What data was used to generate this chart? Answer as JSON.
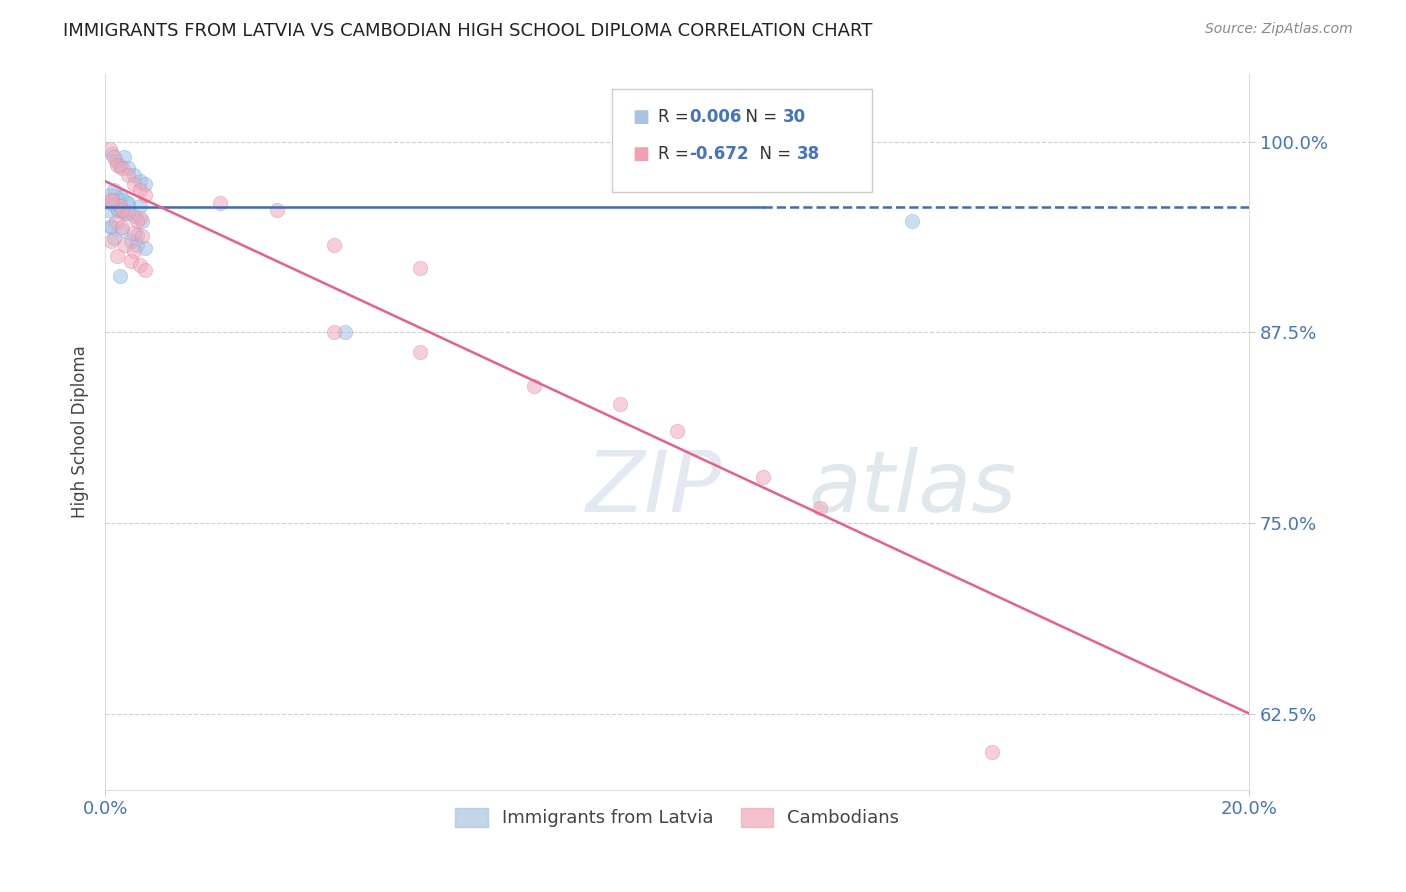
{
  "title": "IMMIGRANTS FROM LATVIA VS CAMBODIAN HIGH SCHOOL DIPLOMA CORRELATION CHART",
  "source": "Source: ZipAtlas.com",
  "ylabel": "High School Diploma",
  "ytick_labels": [
    "62.5%",
    "75.0%",
    "87.5%",
    "100.0%"
  ],
  "ytick_values": [
    0.625,
    0.75,
    0.875,
    1.0
  ],
  "xlim": [
    0.0,
    0.2
  ],
  "ylim": [
    0.575,
    1.045
  ],
  "blue_scatter_x": [
    0.0012,
    0.0018,
    0.0025,
    0.0032,
    0.004,
    0.005,
    0.006,
    0.007,
    0.0015,
    0.0028,
    0.004,
    0.006,
    0.0022,
    0.0035,
    0.005,
    0.0065,
    0.001,
    0.003,
    0.0055,
    0.0015,
    0.0045,
    0.0055,
    0.007,
    0.001,
    0.003,
    0.0025,
    0.042,
    0.001,
    0.001,
    0.141
  ],
  "blue_scatter_y": [
    0.992,
    0.987,
    0.984,
    0.99,
    0.983,
    0.978,
    0.974,
    0.972,
    0.968,
    0.964,
    0.96,
    0.958,
    0.955,
    0.953,
    0.951,
    0.948,
    0.944,
    0.942,
    0.939,
    0.937,
    0.935,
    0.932,
    0.93,
    0.96,
    0.958,
    0.912,
    0.875,
    0.96,
    0.945,
    0.948
  ],
  "blue_scatter_sizes": [
    70,
    70,
    70,
    70,
    70,
    70,
    70,
    70,
    70,
    70,
    70,
    70,
    70,
    70,
    70,
    70,
    70,
    70,
    70,
    70,
    70,
    70,
    70,
    300,
    220,
    70,
    70,
    70,
    70,
    70
  ],
  "pink_scatter_x": [
    0.0008,
    0.0015,
    0.002,
    0.003,
    0.004,
    0.005,
    0.006,
    0.007,
    0.0012,
    0.0025,
    0.004,
    0.006,
    0.0018,
    0.003,
    0.005,
    0.0065,
    0.001,
    0.0035,
    0.005,
    0.002,
    0.0045,
    0.006,
    0.007,
    0.001,
    0.003,
    0.0055,
    0.02,
    0.03,
    0.04,
    0.055,
    0.04,
    0.055,
    0.075,
    0.09,
    0.1,
    0.115,
    0.125,
    0.155
  ],
  "pink_scatter_y": [
    0.995,
    0.99,
    0.985,
    0.983,
    0.978,
    0.972,
    0.968,
    0.965,
    0.962,
    0.958,
    0.953,
    0.95,
    0.947,
    0.944,
    0.94,
    0.938,
    0.935,
    0.932,
    0.928,
    0.925,
    0.922,
    0.919,
    0.916,
    0.962,
    0.955,
    0.948,
    0.96,
    0.955,
    0.932,
    0.917,
    0.875,
    0.862,
    0.84,
    0.828,
    0.81,
    0.78,
    0.76,
    0.6
  ],
  "pink_scatter_sizes": [
    70,
    70,
    70,
    70,
    70,
    70,
    70,
    70,
    70,
    70,
    70,
    70,
    70,
    70,
    70,
    70,
    70,
    70,
    70,
    70,
    70,
    70,
    70,
    70,
    70,
    70,
    70,
    70,
    70,
    70,
    70,
    70,
    70,
    70,
    70,
    70,
    70,
    70
  ],
  "blue_line_y": 0.957,
  "blue_line_solid_end": 0.115,
  "blue_line_color": "#3b6db5",
  "pink_line_x0": 0.0,
  "pink_line_y0": 0.974,
  "pink_line_x1": 0.2,
  "pink_line_y1": 0.625,
  "pink_line_color": "#e8608a",
  "watermark_zip": "ZIP",
  "watermark_atlas": "atlas",
  "watermark_color_zip": "#c8d8e8",
  "watermark_color_atlas": "#b8c8d8",
  "background_color": "#ffffff",
  "grid_color": "#d0d0d0",
  "title_fontsize": 13,
  "source_fontsize": 10,
  "tick_color": "#4472c4",
  "axis_label_color": "#444444",
  "legend_r1_label": "R = ",
  "legend_r1_val": "0.006",
  "legend_r1_n_label": "N = ",
  "legend_r1_n_val": "30",
  "legend_r2_label": "R = ",
  "legend_r2_val": "-0.672",
  "legend_r2_n_label": "N = ",
  "legend_r2_n_val": "38",
  "legend_blue_color": "#a8c4e0",
  "legend_pink_color": "#f0a0b0",
  "legend_val_color": "#4472c4",
  "bottom_legend_label1": "Immigrants from Latvia",
  "bottom_legend_label2": "Cambodians"
}
